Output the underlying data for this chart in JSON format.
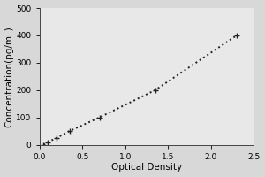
{
  "x_data": [
    0.05,
    0.1,
    0.2,
    0.35,
    0.7,
    1.35,
    2.3
  ],
  "y_data": [
    0,
    10,
    25,
    50,
    100,
    200,
    400
  ],
  "xlabel": "Optical Density",
  "ylabel": "Concentration(pg/mL)",
  "xlim": [
    0,
    2.5
  ],
  "ylim": [
    0,
    500
  ],
  "xticks": [
    0,
    0.5,
    1,
    1.5,
    2,
    2.5
  ],
  "yticks": [
    0,
    100,
    200,
    300,
    400,
    500
  ],
  "line_color": "#222222",
  "marker": "+",
  "marker_size": 5,
  "line_style": ":",
  "line_width": 1.4,
  "background_color": "#d8d8d8",
  "plot_bg_color": "#e8e8e8",
  "tick_fontsize": 6.5,
  "label_fontsize": 7.5
}
